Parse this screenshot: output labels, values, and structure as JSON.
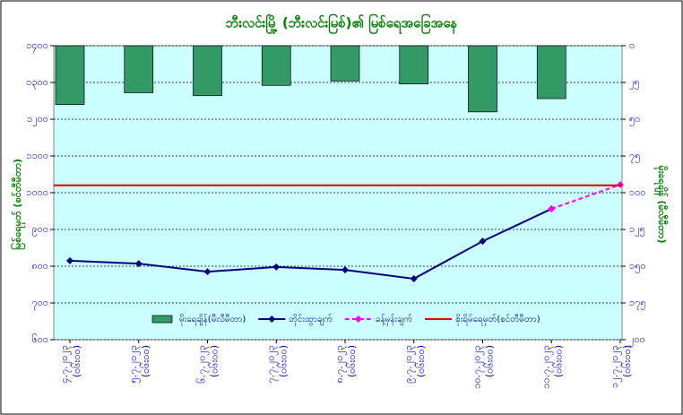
{
  "chart_data": {
    "type": "combo",
    "title": "ဘီးလင်းမြို့ (ဘီးလင်းမြစ်)၏ မြစ်ရေအခြေအနေ",
    "y_label": "မြစ်ရေမှတ် (စင်တီမီတာ)",
    "y2_label": "မိုးရေချိန် (မီလီမီတာ)",
    "categories": [
      "၄.၇.၂၀၂၃",
      "၅.၇.၂၀၂၃",
      "၆.၇.၂၀၂၃",
      "၇.၇.၂၀၂၃",
      "၈.၇.၂၀၂၃",
      "၉.၇.၂၀၂၃",
      "၁၀.၇.၂၀၂၃",
      "၁၁.၇.၂၀၂၃",
      "၁၂.၇.၂၀၂၃"
    ],
    "times": [
      "(၀၆း၀၀)",
      "(၀၆း၀၀)",
      "(၀၆း၀၀)",
      "(၀၆း၀၀)",
      "(၀၆း၀၀)",
      "(၀၆း၀၀)",
      "(၀၆း၀၀)",
      "(၀၆း၀၀)",
      "(၀၆း၀၀)"
    ],
    "ylim": [
      600,
      1400
    ],
    "yticks": [
      {
        "value": 600,
        "label": "၆၀၀"
      },
      {
        "value": 700,
        "label": "၇၀၀"
      },
      {
        "value": 800,
        "label": "၈၀၀"
      },
      {
        "value": 900,
        "label": "၉၀၀"
      },
      {
        "value": 1000,
        "label": "၁၀၀၀"
      },
      {
        "value": 1100,
        "label": "၁၁၀၀"
      },
      {
        "value": 1200,
        "label": "၁၂၀၀"
      },
      {
        "value": 1300,
        "label": "၁၃၀၀"
      },
      {
        "value": 1400,
        "label": "၁၄၀၀"
      }
    ],
    "y2lim": [
      0,
      200
    ],
    "y2_inverted": true,
    "y2ticks": [
      {
        "value": 0,
        "label": "၀"
      },
      {
        "value": 25,
        "label": "၂၅"
      },
      {
        "value": 50,
        "label": "၅၀"
      },
      {
        "value": 75,
        "label": "၇၅"
      },
      {
        "value": 100,
        "label": "၁၀၀"
      },
      {
        "value": 125,
        "label": "၁၂၅"
      },
      {
        "value": 150,
        "label": "၁၅၀"
      },
      {
        "value": 175,
        "label": "၁၇၅"
      },
      {
        "value": 200,
        "label": "၂၀၀"
      }
    ],
    "series": [
      {
        "name": "မိုးရေချိန်(မီလီမီတာ)",
        "kind": "bar",
        "axis": "y2",
        "color": "#339966",
        "values": [
          40,
          32,
          34,
          27,
          24,
          26,
          45,
          36,
          null
        ]
      },
      {
        "name": "တိုင်းထွာချက်",
        "kind": "line",
        "color": "#000080",
        "dash": false,
        "values": [
          815,
          807,
          785,
          798,
          790,
          766,
          868,
          956,
          null
        ]
      },
      {
        "name": "ခန့်မှန်းချက်",
        "kind": "line",
        "color": "#ff00ff",
        "dash": true,
        "values": [
          null,
          null,
          null,
          null,
          null,
          null,
          null,
          956,
          1022
        ]
      }
    ],
    "reference_lines": [
      {
        "name": "စိုးရိမ်ရေမှတ်(စင်တီမီတာ)",
        "color": "#e00000",
        "level": 1020
      }
    ],
    "grid": true
  }
}
